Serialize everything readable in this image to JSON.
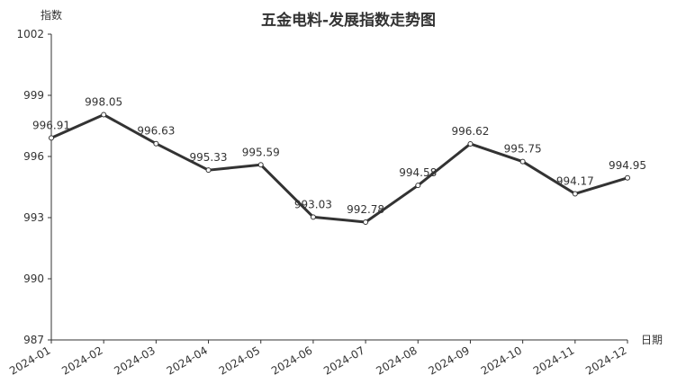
{
  "chart_data": {
    "type": "line",
    "title": "五金电料-发展指数走势图",
    "y_label": "指数",
    "x_label": "日期",
    "categories": [
      "2024-01",
      "2024-02",
      "2024-03",
      "2024-04",
      "2024-05",
      "2024-06",
      "2024-07",
      "2024-08",
      "2024-09",
      "2024-10",
      "2024-11",
      "2024-12"
    ],
    "series": [
      {
        "name": "指数",
        "color": "#333333",
        "values": [
          996.91,
          998.05,
          996.63,
          995.33,
          995.59,
          993.03,
          992.78,
          994.58,
          996.62,
          995.75,
          994.17,
          994.95
        ]
      }
    ],
    "ylim": [
      987,
      1002
    ],
    "yticks": [
      987,
      990,
      993,
      996,
      999,
      1002
    ]
  }
}
